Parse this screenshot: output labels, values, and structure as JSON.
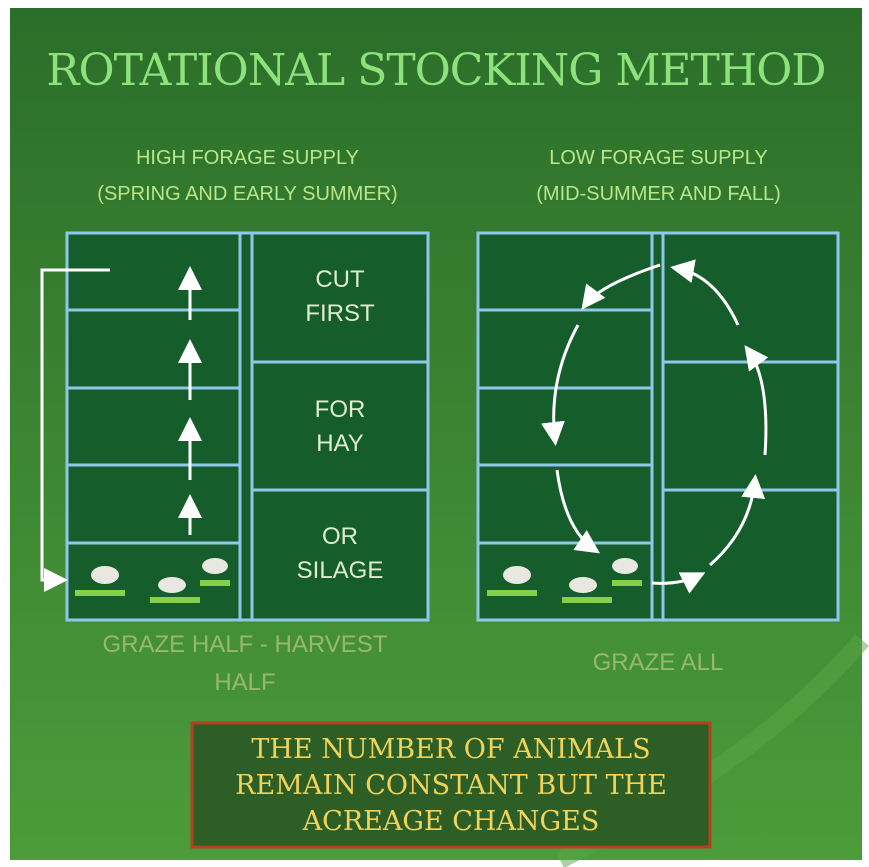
{
  "title": "ROTATIONAL STOCKING METHOD",
  "panels": [
    {
      "heading": [
        "HIGH FORAGE SUPPLY",
        "(SPRING AND EARLY SUMMER)"
      ],
      "fields": [
        [
          "CUT",
          "FIRST"
        ],
        [
          "FOR",
          "HAY"
        ],
        [
          "OR",
          "SILAGE"
        ]
      ],
      "caption": "GRAZE HALF - HARVEST HALF"
    },
    {
      "heading": [
        "LOW FORAGE SUPPLY",
        "(MID-SUMMER AND FALL)"
      ],
      "caption": "GRAZE ALL"
    }
  ],
  "note": "THE NUMBER OF ANIMALS REMAIN CONSTANT BUT THE ACREAGE CHANGES"
}
